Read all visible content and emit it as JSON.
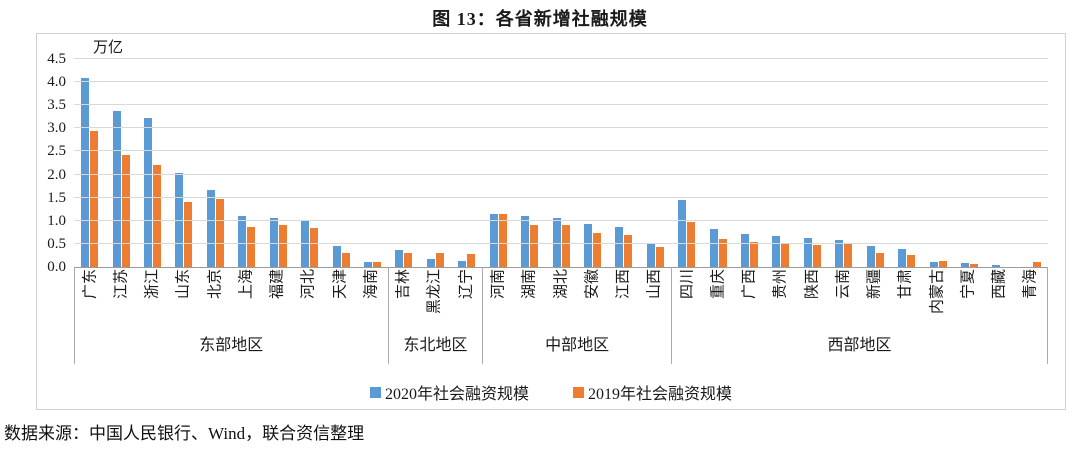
{
  "title": "图 13：各省新增社融规模",
  "unit_label": "万亿",
  "source": "数据来源：中国人民银行、Wind，联合资信整理",
  "colors": {
    "series_2020": "#5B9BD5",
    "series_2019": "#ED7D31",
    "gridline": "#D9D9D9",
    "axis_line": "#9B9B9B"
  },
  "chart_data": {
    "type": "bar",
    "title": "图 13：各省新增社融规模",
    "unit": "万亿",
    "ylim": [
      0,
      4.5
    ],
    "ytick_step": 0.5,
    "yticks": [
      "0.0",
      "0.5",
      "1.0",
      "1.5",
      "2.0",
      "2.5",
      "3.0",
      "3.5",
      "4.0",
      "4.5"
    ],
    "grid": true,
    "legend_position": "bottom",
    "groups": [
      {
        "label": "东部地区",
        "provinces": [
          "广东",
          "江苏",
          "浙江",
          "山东",
          "北京",
          "上海",
          "福建",
          "河北",
          "天津",
          "海南"
        ]
      },
      {
        "label": "东北地区",
        "provinces": [
          "吉林",
          "黑龙江",
          "辽宁"
        ]
      },
      {
        "label": "中部地区",
        "provinces": [
          "河南",
          "湖南",
          "湖北",
          "安徽",
          "江西",
          "山西"
        ]
      },
      {
        "label": "西部地区",
        "provinces": [
          "四川",
          "重庆",
          "广西",
          "贵州",
          "陕西",
          "云南",
          "新疆",
          "甘肃",
          "内蒙古",
          "宁夏",
          "西藏",
          "青海"
        ]
      }
    ],
    "categories": [
      "广东",
      "江苏",
      "浙江",
      "山东",
      "北京",
      "上海",
      "福建",
      "河北",
      "天津",
      "海南",
      "吉林",
      "黑龙江",
      "辽宁",
      "河南",
      "湖南",
      "湖北",
      "安徽",
      "江西",
      "山西",
      "四川",
      "重庆",
      "广西",
      "贵州",
      "陕西",
      "云南",
      "新疆",
      "甘肃",
      "内蒙古",
      "宁夏",
      "西藏",
      "青海"
    ],
    "series": [
      {
        "name": "2020年社会融资规模",
        "color": "#5B9BD5",
        "values": [
          4.08,
          3.38,
          3.22,
          2.03,
          1.67,
          1.1,
          1.07,
          1.02,
          0.45,
          0.12,
          0.36,
          0.18,
          0.13,
          1.15,
          1.1,
          1.06,
          0.94,
          0.87,
          0.5,
          1.45,
          0.82,
          0.72,
          0.67,
          0.63,
          0.58,
          0.46,
          0.4,
          0.11,
          0.09,
          0.05,
          0.0
        ]
      },
      {
        "name": "2019年社会融资规模",
        "color": "#ED7D31",
        "values": [
          2.95,
          2.43,
          2.21,
          1.4,
          1.47,
          0.87,
          0.92,
          0.84,
          0.3,
          0.11,
          0.3,
          0.31,
          0.29,
          1.14,
          0.92,
          0.9,
          0.74,
          0.7,
          0.44,
          0.98,
          0.6,
          0.55,
          0.52,
          0.47,
          0.5,
          0.3,
          0.25,
          0.14,
          0.07,
          0.0,
          0.12
        ]
      }
    ]
  }
}
